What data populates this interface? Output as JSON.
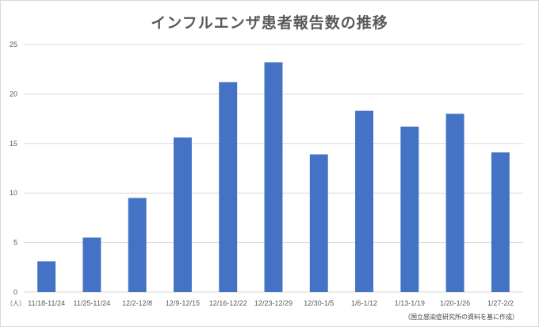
{
  "chart_data": {
    "type": "bar",
    "title": "インフルエンザ患者報告数の推移",
    "unit_label": "（人）",
    "source_note": "（国立感染症研究所の資料を基に作成）",
    "categories": [
      "11/18-11/24",
      "11/25-11/24",
      "12/2-12/8",
      "12/9-12/15",
      "12/16-12/22",
      "12/23-12/29",
      "12/30-1/5",
      "1/6-1/12",
      "1/13-1/19",
      "1/20-1/26",
      "1/27-2/2"
    ],
    "values": [
      3.1,
      5.5,
      9.5,
      15.6,
      21.2,
      23.2,
      13.9,
      18.3,
      16.7,
      18.0,
      14.1
    ],
    "ylim": [
      0,
      25
    ],
    "yticks": [
      0,
      5,
      10,
      15,
      20,
      25
    ],
    "grid": true,
    "legend": "none",
    "bar_color": "#4472c4",
    "grid_color": "#d9d9d9"
  }
}
